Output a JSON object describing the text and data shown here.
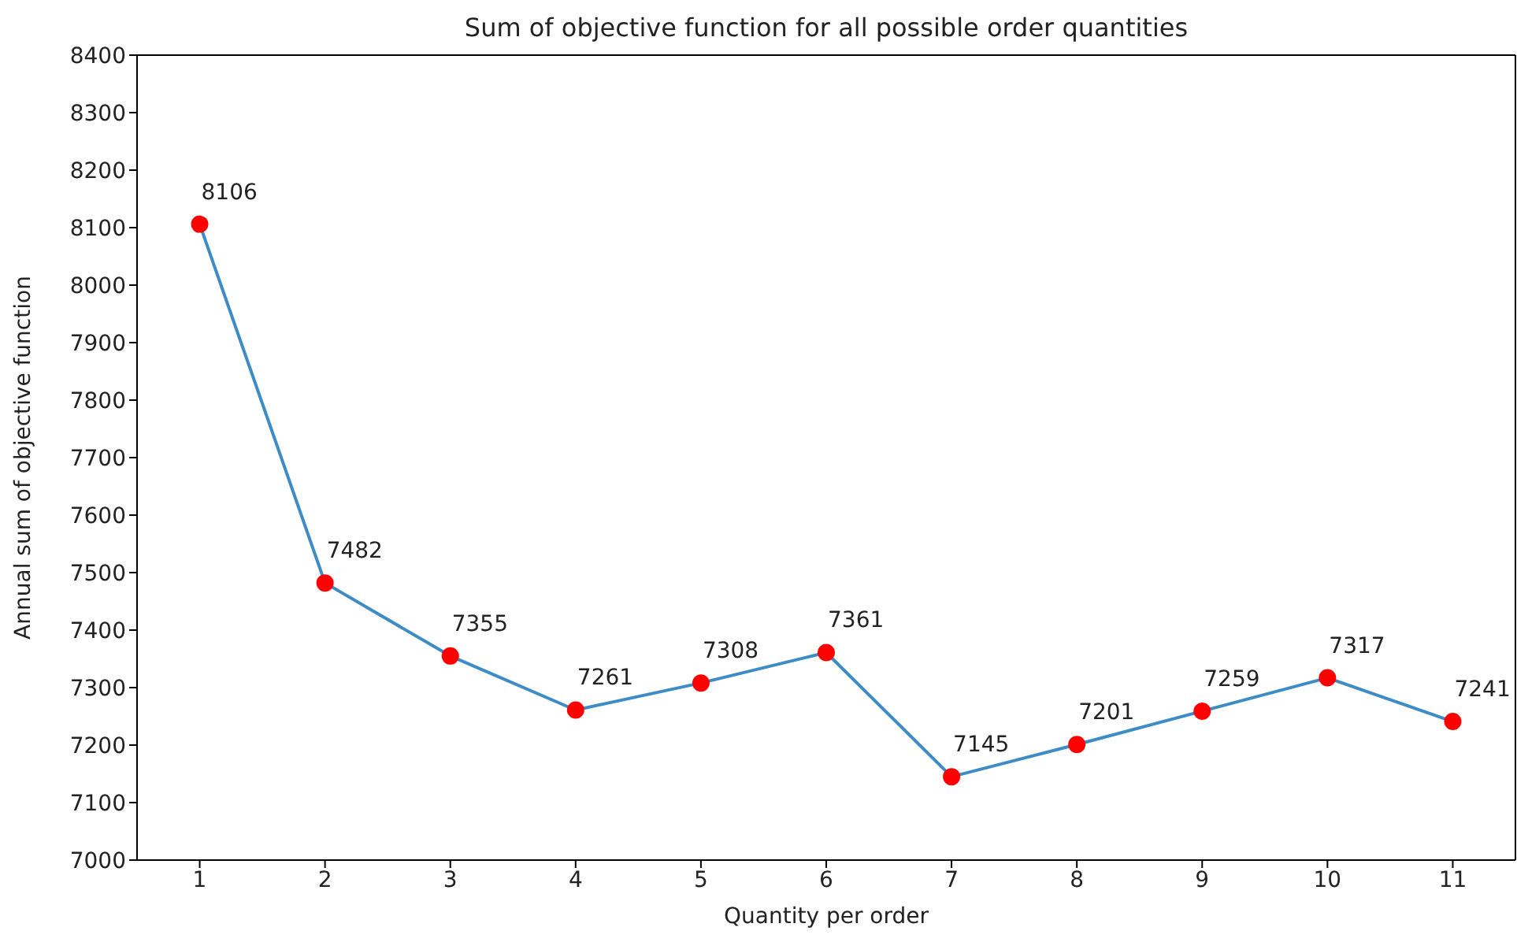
{
  "chart_data": {
    "type": "line",
    "title": "Sum of objective function for all possible order quantities",
    "xlabel": "Quantity per order",
    "ylabel": "Annual sum of objective function",
    "x": [
      1,
      2,
      3,
      4,
      5,
      6,
      7,
      8,
      9,
      10,
      11
    ],
    "series": [
      {
        "color": "#3d8cc6",
        "colors": [
          "#ff0000",
          "#ff0000",
          "#ff0000",
          "#ff0000",
          "#ff0000",
          "#ff0000",
          "#ff0000",
          "#ff0000",
          "#ff0000",
          "#ff0000",
          "#ff0000"
        ],
        "values": [
          8106,
          7482,
          7355,
          7261,
          7308,
          7361,
          7145,
          7201,
          7259,
          7317,
          7241
        ]
      }
    ],
    "xlim": [
      0.5,
      11.5
    ],
    "xticks": [
      1,
      2,
      3,
      4,
      5,
      6,
      7,
      8,
      9,
      10,
      11
    ],
    "ylim": [
      7000,
      8400
    ],
    "yticks": [
      7000,
      7100,
      7200,
      7300,
      7400,
      7500,
      7600,
      7700,
      7800,
      7900,
      8000,
      8100,
      8200,
      8300,
      8400
    ],
    "marker": "circle",
    "line_style": "solid",
    "data_labels": true,
    "grid": false,
    "legend": false
  }
}
